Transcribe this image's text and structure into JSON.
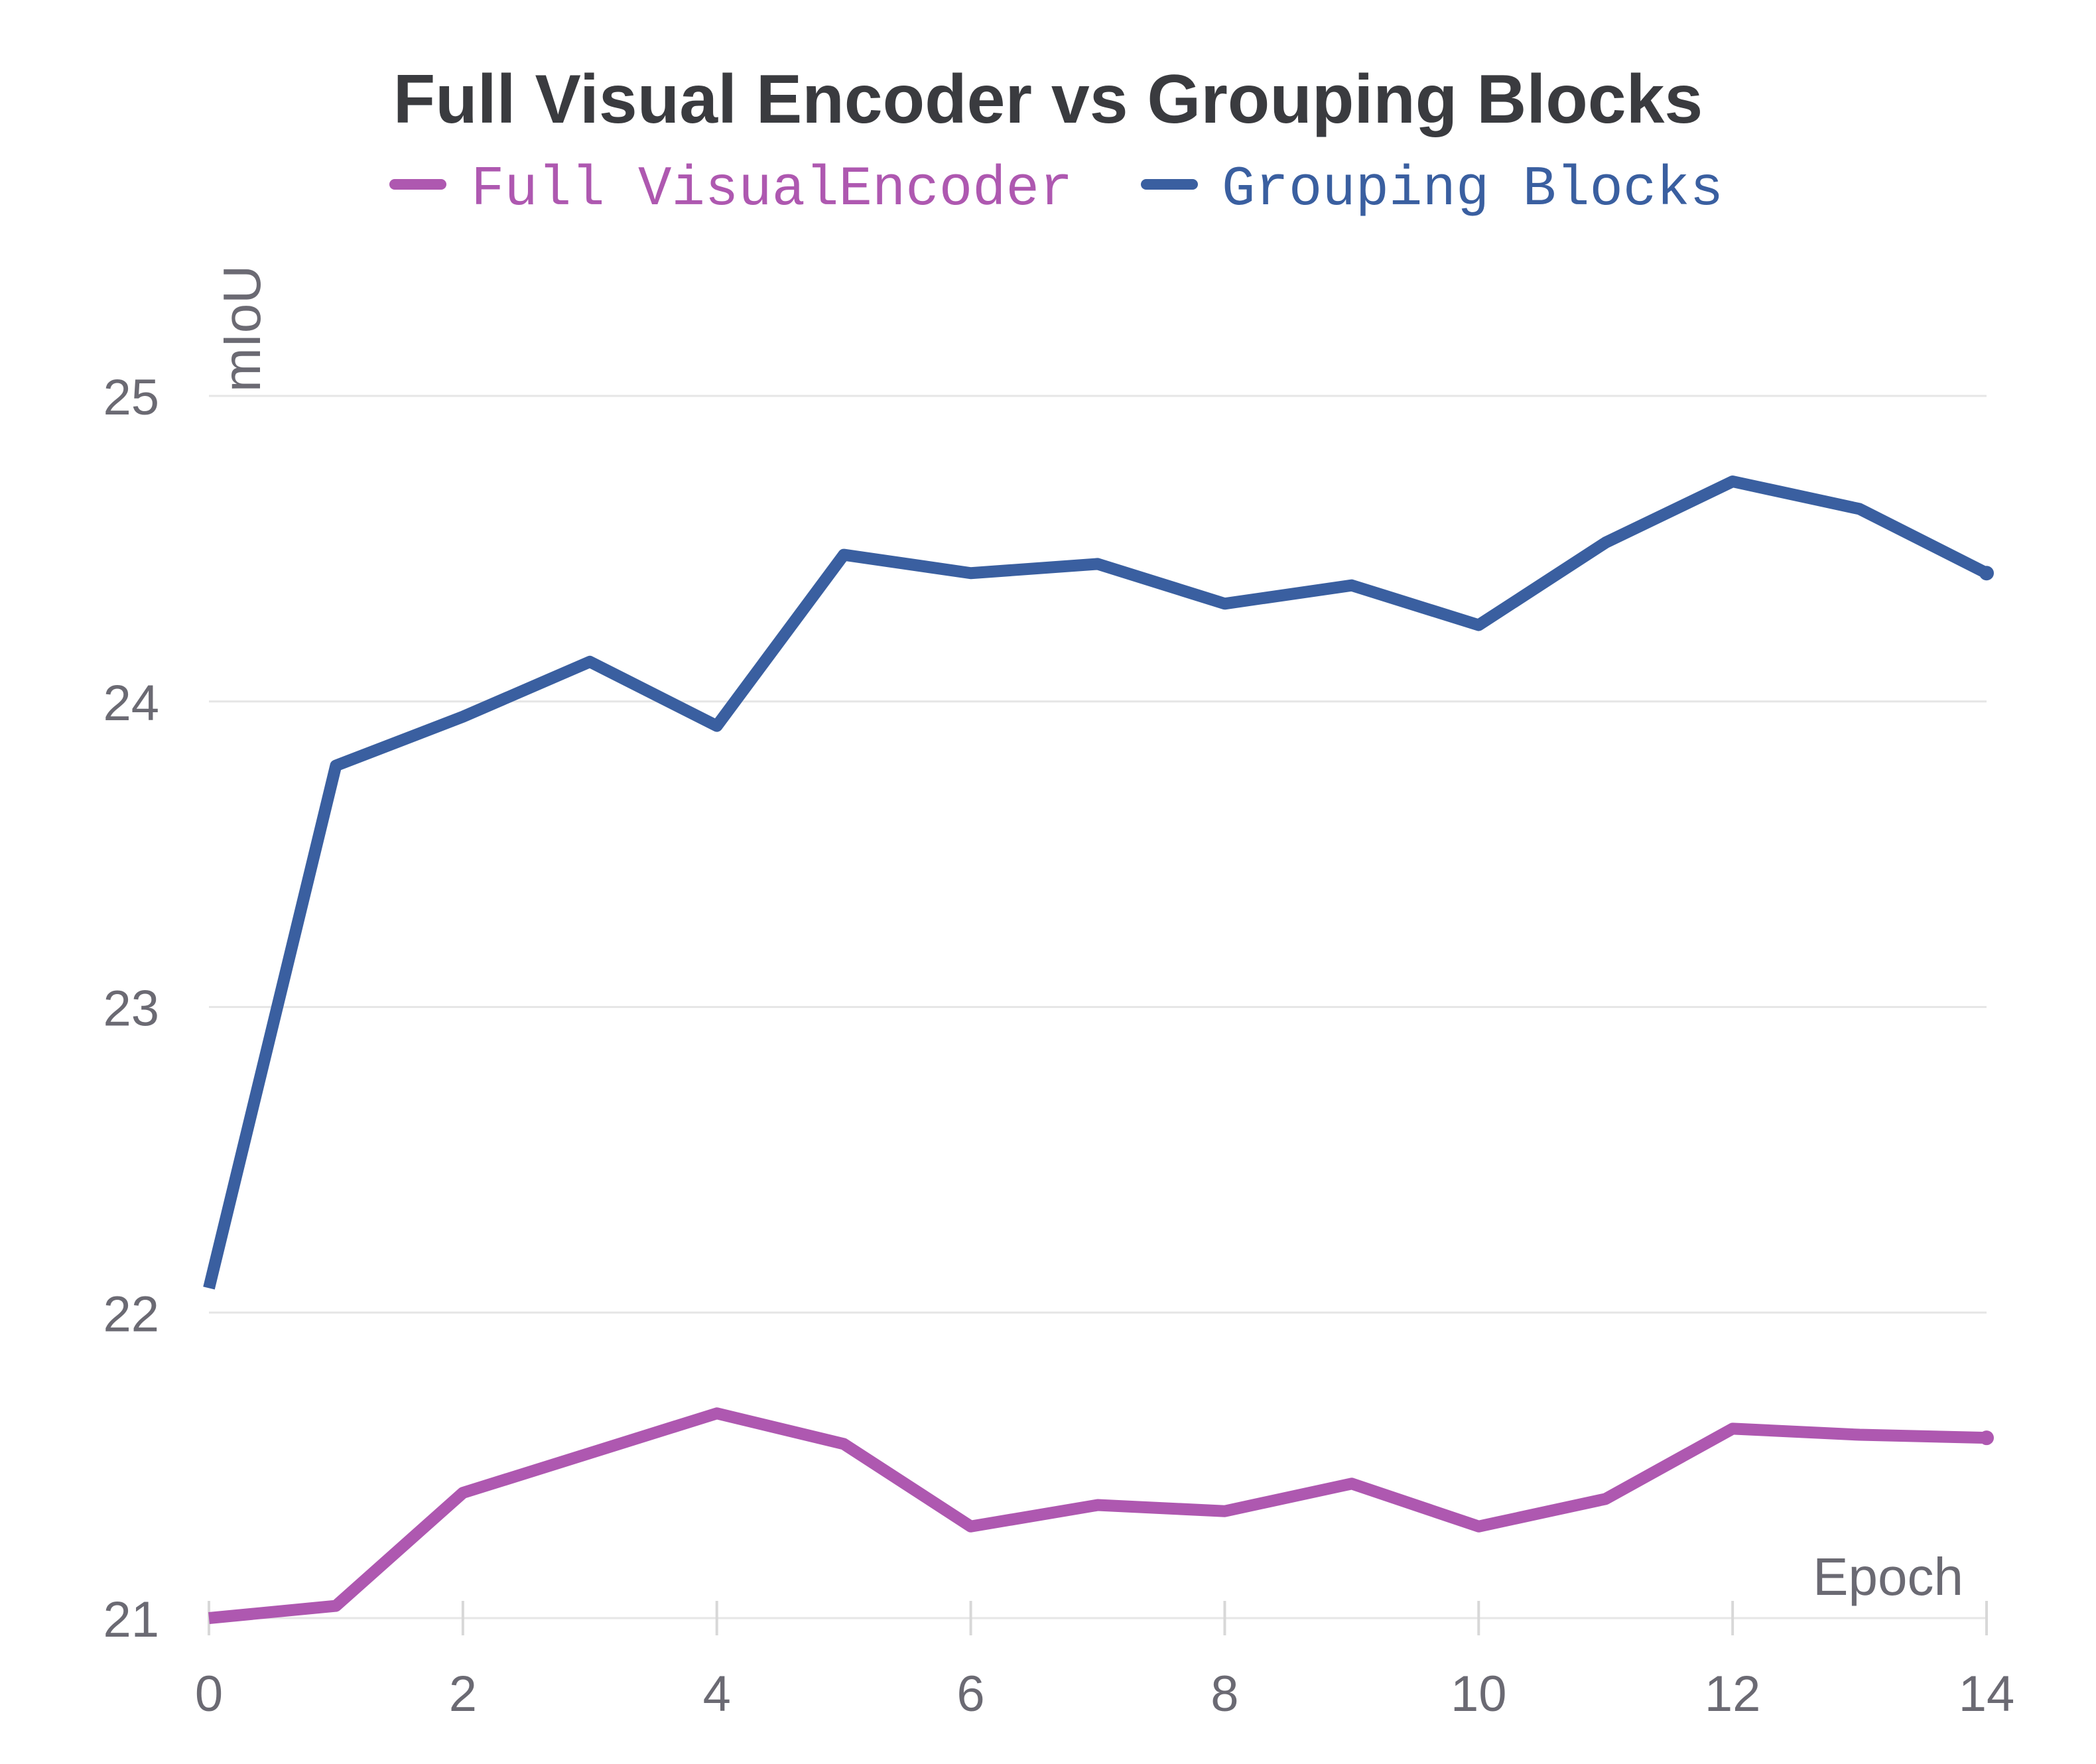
{
  "chart_data": {
    "type": "line",
    "title": "Full Visual Encoder vs Grouping Blocks",
    "xlabel": "Epoch",
    "ylabel": "mIoU",
    "x": [
      0,
      1,
      2,
      3,
      4,
      5,
      6,
      7,
      8,
      9,
      10,
      11,
      12,
      13,
      14
    ],
    "xlim": [
      0,
      14
    ],
    "ylim": [
      21,
      25.3
    ],
    "xticks": [
      0,
      2,
      4,
      6,
      8,
      10,
      12,
      14
    ],
    "yticks": [
      21,
      22,
      23,
      24,
      25
    ],
    "grid": "horizontal",
    "legend_position": "top-center",
    "series": [
      {
        "name": "Full VisualEncoder",
        "color": "#ae58b0",
        "values": [
          21.0,
          21.04,
          21.41,
          21.54,
          21.67,
          21.57,
          21.3,
          21.37,
          21.35,
          21.44,
          21.3,
          21.39,
          21.62,
          21.6,
          21.59
        ]
      },
      {
        "name": "Grouping Blocks",
        "color": "#3a5fa0",
        "values": [
          22.08,
          23.79,
          23.95,
          24.13,
          23.92,
          24.48,
          24.42,
          24.45,
          24.32,
          24.38,
          24.25,
          24.52,
          24.72,
          24.63,
          24.42
        ]
      }
    ]
  }
}
